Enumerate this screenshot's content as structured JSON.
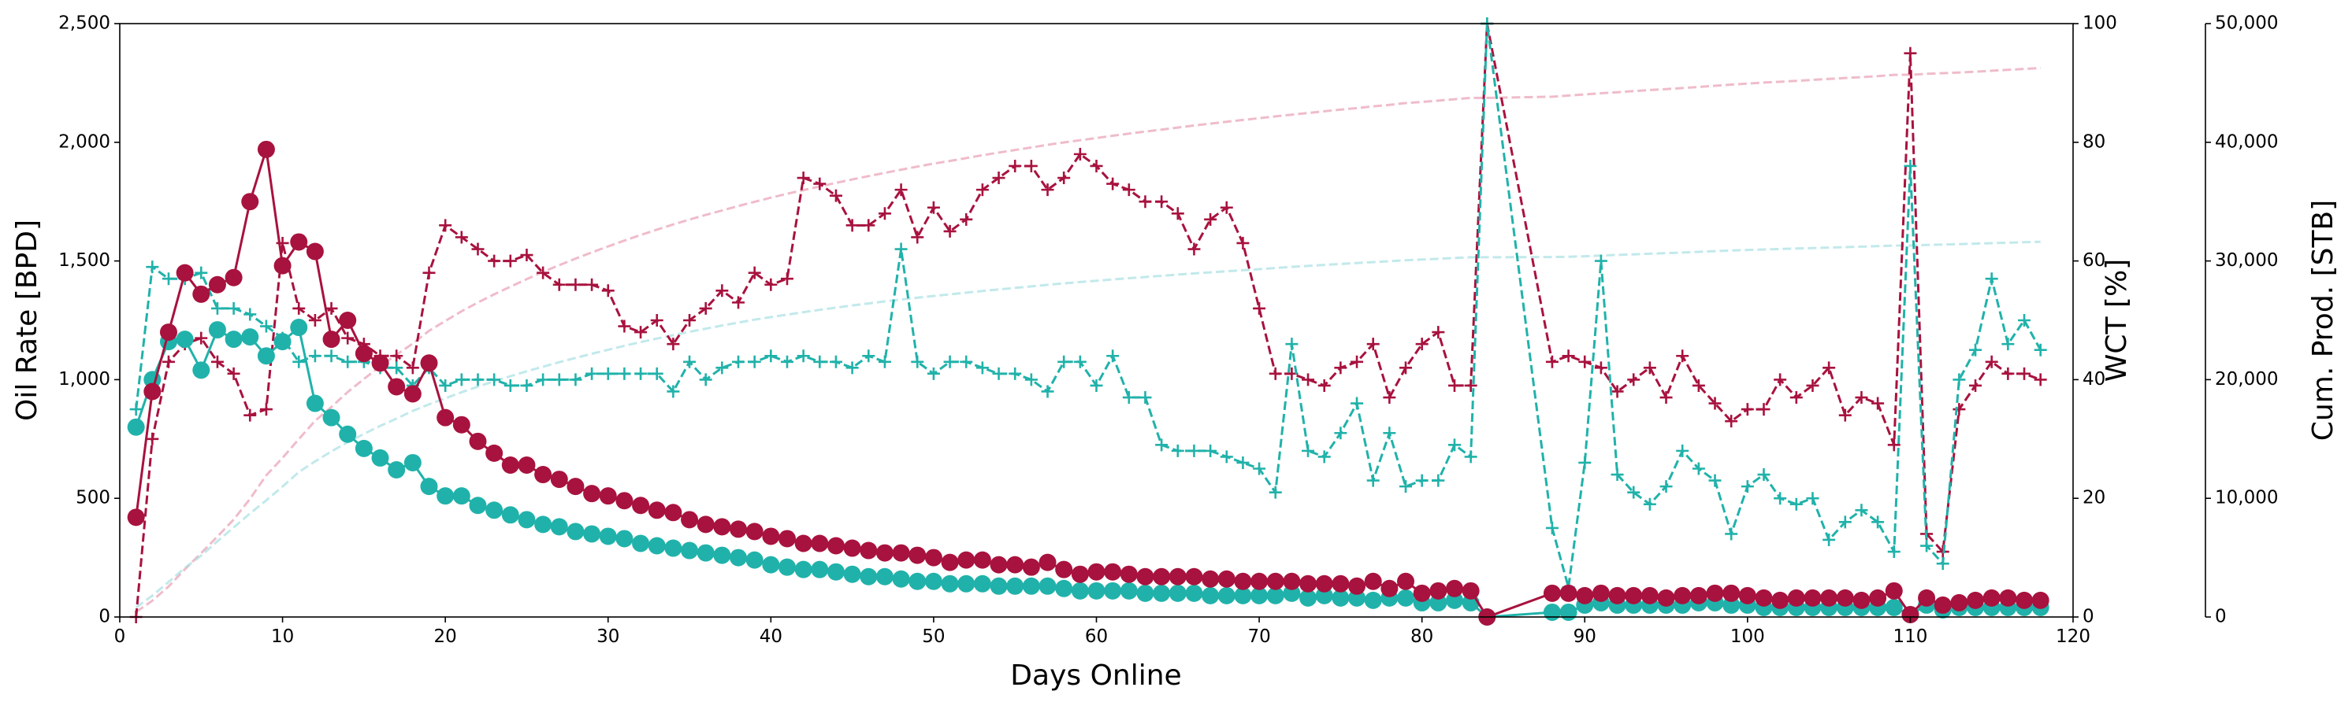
{
  "chart_data": {
    "type": "line",
    "x_label": "Days Online",
    "y_label": "Oil Rate [BPD]",
    "y2_label": "WCT [%]",
    "y3_label": "Cum. Prod. [STB]",
    "x": [
      1,
      2,
      3,
      4,
      5,
      6,
      7,
      8,
      9,
      10,
      11,
      12,
      13,
      14,
      15,
      16,
      17,
      18,
      19,
      20,
      21,
      22,
      23,
      24,
      25,
      26,
      27,
      28,
      29,
      30,
      31,
      32,
      33,
      34,
      35,
      36,
      37,
      38,
      39,
      40,
      41,
      42,
      43,
      44,
      45,
      46,
      47,
      48,
      49,
      50,
      51,
      52,
      53,
      54,
      55,
      56,
      57,
      58,
      59,
      60,
      61,
      62,
      63,
      64,
      65,
      66,
      67,
      68,
      69,
      70,
      71,
      72,
      73,
      74,
      75,
      76,
      77,
      78,
      79,
      80,
      81,
      82,
      83,
      84,
      88,
      89,
      90,
      91,
      92,
      93,
      94,
      95,
      96,
      97,
      98,
      99,
      100,
      101,
      102,
      103,
      104,
      105,
      106,
      107,
      108,
      109,
      110,
      111,
      112,
      113,
      114,
      115,
      116,
      117,
      118
    ],
    "xlim": [
      0,
      120
    ],
    "xticks": [
      0,
      10,
      20,
      30,
      40,
      50,
      60,
      70,
      80,
      90,
      100,
      110,
      120
    ],
    "ylim": [
      0,
      2500
    ],
    "yticks": [
      0,
      500,
      {
        "value": 1000,
        "label": "1,000"
      },
      {
        "value": 1500,
        "label": "1,500"
      },
      {
        "value": 2000,
        "label": "2,000"
      },
      {
        "value": 2500,
        "label": "2,500"
      }
    ],
    "y2lim": [
      0,
      100
    ],
    "y2ticks": [
      0,
      20,
      40,
      60,
      80,
      100
    ],
    "y3lim": [
      0,
      50000
    ],
    "y3ticks": [
      0,
      {
        "value": 10000,
        "label": "10,000"
      },
      {
        "value": 20000,
        "label": "20,000"
      },
      {
        "value": 30000,
        "label": "30,000"
      },
      {
        "value": 40000,
        "label": "40,000"
      },
      {
        "value": 50000,
        "label": "50,000"
      }
    ],
    "grid": false,
    "series": [
      {
        "color": "#e8a0b4",
        "axis": "y3",
        "linestyle": "dashed",
        "marker": "none",
        "opacity": 0.7,
        "values": [
          420,
          1370,
          2570,
          4020,
          5380,
          6780,
          8210,
          9960,
          11930,
          13410,
          14990,
          16530,
          17700,
          18950,
          20060,
          21130,
          22100,
          23040,
          24110,
          24950,
          25760,
          26500,
          27190,
          27830,
          28470,
          29070,
          29650,
          30200,
          30720,
          31230,
          31720,
          32190,
          32640,
          33080,
          33490,
          33880,
          34260,
          34630,
          34990,
          35330,
          35660,
          35970,
          36280,
          36580,
          36870,
          37150,
          37420,
          37690,
          37950,
          38200,
          38430,
          38670,
          38910,
          39130,
          39350,
          39560,
          39790,
          39990,
          40170,
          40360,
          40550,
          40730,
          40900,
          41070,
          41240,
          41410,
          41570,
          41730,
          41880,
          42030,
          42180,
          42330,
          42470,
          42610,
          42750,
          42880,
          43030,
          43150,
          43300,
          43400,
          43510,
          43630,
          43740,
          43740,
          43840,
          43940,
          44030,
          44130,
          44220,
          44310,
          44400,
          44480,
          44570,
          44660,
          44760,
          44860,
          44950,
          45030,
          45100,
          45180,
          45260,
          45340,
          45420,
          45490,
          45570,
          45680,
          45690,
          45770,
          45820,
          45880,
          45950,
          46030,
          46110,
          46180,
          46250
        ]
      },
      {
        "color": "#a8dfe3",
        "axis": "y3",
        "linestyle": "dashed",
        "marker": "none",
        "opacity": 0.7,
        "values": [
          800,
          1800,
          2960,
          4130,
          5170,
          6380,
          7550,
          8730,
          9830,
          10990,
          12210,
          13110,
          13950,
          14720,
          15430,
          16100,
          16720,
          17370,
          17920,
          18430,
          18940,
          19410,
          19860,
          20290,
          20700,
          21090,
          21470,
          21830,
          22180,
          22520,
          22850,
          23160,
          23460,
          23750,
          24030,
          24300,
          24560,
          24810,
          25050,
          25270,
          25480,
          25680,
          25880,
          26070,
          26250,
          26420,
          26590,
          26750,
          26900,
          27050,
          27190,
          27330,
          27470,
          27600,
          27730,
          27860,
          27990,
          28110,
          28220,
          28330,
          28440,
          28550,
          28650,
          28750,
          28850,
          28950,
          29040,
          29130,
          29220,
          29310,
          29400,
          29500,
          29580,
          29670,
          29750,
          29830,
          29900,
          29980,
          30060,
          30120,
          30180,
          30250,
          30310,
          30310,
          30330,
          30350,
          30400,
          30460,
          30510,
          30560,
          30610,
          30660,
          30710,
          30770,
          30830,
          30880,
          30930,
          30970,
          31010,
          31050,
          31090,
          31130,
          31170,
          31210,
          31250,
          31290,
          31300,
          31350,
          31380,
          31420,
          31460,
          31500,
          31540,
          31580,
          31620
        ]
      },
      {
        "color": "#a8123e",
        "axis": "y2",
        "linestyle": "dashed",
        "marker": "+",
        "opacity": 1,
        "values": [
          0,
          30,
          43,
          46,
          47,
          43,
          41,
          34,
          35,
          63,
          52,
          50,
          52,
          47,
          46,
          44,
          44,
          42,
          58,
          66,
          64,
          62,
          60,
          60,
          61,
          58,
          56,
          56,
          56,
          55,
          49,
          48,
          50,
          46,
          50,
          52,
          55,
          53,
          58,
          56,
          57,
          74,
          73,
          71,
          66,
          66,
          68,
          72,
          64,
          69,
          65,
          67,
          72,
          74,
          76,
          76,
          72,
          74,
          78,
          76,
          73,
          72,
          70,
          70,
          68,
          62,
          67,
          69,
          63,
          52,
          41,
          41,
          40,
          39,
          42,
          43,
          46,
          37,
          42,
          46,
          48,
          39,
          39,
          100,
          43,
          44,
          43,
          42,
          38,
          40,
          42,
          37,
          44,
          39,
          36,
          33,
          35,
          35,
          40,
          37,
          39,
          42,
          34,
          37,
          36,
          29,
          95,
          14,
          11,
          35,
          39,
          43,
          41,
          41,
          40
        ]
      },
      {
        "color": "#20b2aa",
        "axis": "y2",
        "linestyle": "dashed",
        "marker": "+",
        "opacity": 1,
        "values": [
          35,
          59,
          57,
          57,
          58,
          52,
          52,
          51,
          49,
          47,
          43,
          44,
          44,
          43,
          43,
          42,
          42,
          39,
          42,
          39,
          40,
          40,
          40,
          39,
          39,
          40,
          40,
          40,
          41,
          41,
          41,
          41,
          41,
          38,
          43,
          40,
          42,
          43,
          43,
          44,
          43,
          44,
          43,
          43,
          42,
          44,
          43,
          62,
          43,
          41,
          43,
          43,
          42,
          41,
          41,
          40,
          38,
          43,
          43,
          39,
          44,
          37,
          37,
          29,
          28,
          28,
          28,
          27,
          26,
          25,
          21,
          46,
          28,
          27,
          31,
          36,
          23,
          31,
          22,
          23,
          23,
          29,
          27,
          100,
          15,
          5,
          26,
          60,
          24,
          21,
          19,
          22,
          28,
          25,
          23,
          14,
          22,
          24,
          20,
          19,
          20,
          13,
          16,
          18,
          16,
          11,
          76,
          12,
          9,
          40,
          45,
          57,
          46,
          50,
          45
        ]
      },
      {
        "color": "#20b2aa",
        "axis": "y",
        "linestyle": "solid",
        "marker": "o",
        "opacity": 1,
        "values": [
          800,
          1000,
          1160,
          1170,
          1040,
          1210,
          1170,
          1180,
          1100,
          1160,
          1220,
          900,
          840,
          770,
          710,
          670,
          620,
          650,
          550,
          510,
          510,
          470,
          450,
          430,
          410,
          390,
          380,
          360,
          350,
          340,
          330,
          310,
          300,
          290,
          280,
          270,
          260,
          250,
          240,
          220,
          210,
          200,
          200,
          190,
          180,
          170,
          170,
          160,
          150,
          150,
          140,
          140,
          140,
          130,
          130,
          130,
          130,
          120,
          110,
          110,
          110,
          110,
          100,
          100,
          100,
          100,
          90,
          90,
          90,
          90,
          90,
          100,
          80,
          90,
          80,
          80,
          70,
          80,
          80,
          60,
          60,
          70,
          60,
          0,
          20,
          20,
          50,
          60,
          50,
          50,
          50,
          50,
          50,
          60,
          60,
          50,
          50,
          40,
          40,
          40,
          40,
          40,
          40,
          40,
          40,
          40,
          10,
          50,
          30,
          40,
          40,
          40,
          40,
          40,
          40
        ]
      },
      {
        "color": "#a8123e",
        "axis": "y",
        "linestyle": "solid",
        "marker": "o",
        "opacity": 1,
        "values": [
          420,
          950,
          1200,
          1450,
          1360,
          1400,
          1430,
          1750,
          1970,
          1480,
          1580,
          1540,
          1170,
          1250,
          1110,
          1070,
          970,
          940,
          1070,
          840,
          810,
          740,
          690,
          640,
          640,
          600,
          580,
          550,
          520,
          510,
          490,
          470,
          450,
          440,
          410,
          390,
          380,
          370,
          360,
          340,
          330,
          310,
          310,
          300,
          290,
          280,
          270,
          270,
          260,
          250,
          230,
          240,
          240,
          220,
          220,
          210,
          230,
          200,
          180,
          190,
          190,
          180,
          170,
          170,
          170,
          170,
          160,
          160,
          150,
          150,
          150,
          150,
          140,
          140,
          140,
          130,
          150,
          120,
          150,
          100,
          110,
          120,
          110,
          0,
          100,
          100,
          90,
          100,
          90,
          90,
          90,
          80,
          90,
          90,
          100,
          100,
          90,
          80,
          70,
          80,
          80,
          80,
          80,
          70,
          80,
          110,
          10,
          80,
          50,
          60,
          70,
          80,
          80,
          70,
          70
        ]
      }
    ]
  }
}
